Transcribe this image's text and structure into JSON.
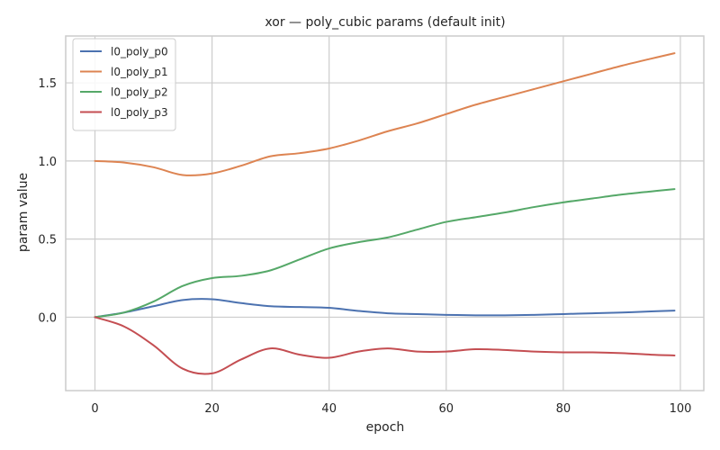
{
  "chart_data": {
    "type": "line",
    "title": "xor — poly_cubic params (default init)",
    "xlabel": "epoch",
    "ylabel": "param value",
    "xlim": [
      -5,
      104
    ],
    "ylim": [
      -0.47,
      1.8
    ],
    "xticks": [
      0,
      20,
      40,
      60,
      80,
      100
    ],
    "xtick_labels": [
      "0",
      "20",
      "40",
      "60",
      "80",
      "100"
    ],
    "yticks": [
      0.0,
      0.5,
      1.0,
      1.5
    ],
    "ytick_labels": [
      "0.0",
      "0.5",
      "1.0",
      "1.5"
    ],
    "grid": true,
    "legend_position": "top-left",
    "x": [
      0,
      5,
      10,
      15,
      20,
      25,
      30,
      35,
      40,
      45,
      50,
      55,
      60,
      65,
      70,
      75,
      80,
      85,
      90,
      95,
      99
    ],
    "series": [
      {
        "name": "l0_poly_p0",
        "color": "#4c72b0",
        "values": [
          0.0,
          0.03,
          0.07,
          0.11,
          0.115,
          0.09,
          0.07,
          0.065,
          0.06,
          0.04,
          0.025,
          0.02,
          0.015,
          0.012,
          0.012,
          0.015,
          0.02,
          0.025,
          0.03,
          0.037,
          0.042
        ]
      },
      {
        "name": "l0_poly_p1",
        "color": "#dd8452",
        "values": [
          1.0,
          0.99,
          0.96,
          0.91,
          0.92,
          0.97,
          1.03,
          1.05,
          1.08,
          1.13,
          1.19,
          1.24,
          1.3,
          1.36,
          1.41,
          1.46,
          1.51,
          1.56,
          1.61,
          1.655,
          1.69
        ]
      },
      {
        "name": "l0_poly_p2",
        "color": "#55a868",
        "values": [
          0.0,
          0.03,
          0.1,
          0.2,
          0.25,
          0.265,
          0.3,
          0.37,
          0.44,
          0.48,
          0.51,
          0.56,
          0.61,
          0.64,
          0.67,
          0.705,
          0.735,
          0.76,
          0.785,
          0.805,
          0.82
        ]
      },
      {
        "name": "l0_poly_p3",
        "color": "#c44e52",
        "values": [
          0.0,
          -0.06,
          -0.18,
          -0.33,
          -0.36,
          -0.27,
          -0.2,
          -0.24,
          -0.26,
          -0.22,
          -0.2,
          -0.22,
          -0.22,
          -0.205,
          -0.21,
          -0.22,
          -0.225,
          -0.225,
          -0.23,
          -0.24,
          -0.245
        ]
      }
    ]
  }
}
